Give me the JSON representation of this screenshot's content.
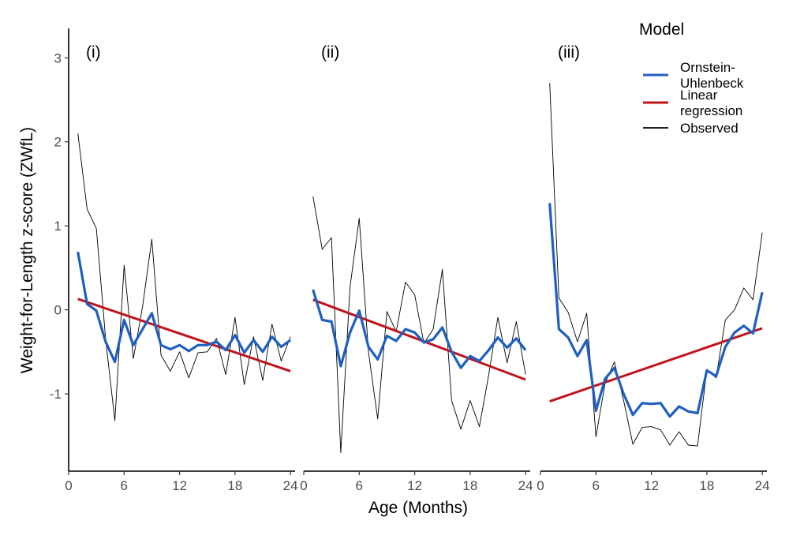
{
  "chart_data": {
    "type": "line",
    "xlabel": "Age (Months)",
    "ylabel": "Weight-for-Length z-score (ZWfL)",
    "xlim": [
      0,
      24.5
    ],
    "ylim": [
      -1.92,
      3.35
    ],
    "x_ticks": [
      0,
      6,
      12,
      18,
      24
    ],
    "y_ticks": [
      -1,
      0,
      1,
      2,
      3
    ],
    "grid": false,
    "legend": {
      "title": "Model",
      "placement": "top-right",
      "entries": [
        {
          "lines": [
            "Ornstein-",
            "Uhlenbeck"
          ],
          "color": "#1f5fbf",
          "series": "ou"
        },
        {
          "lines": [
            "Linear",
            "regression"
          ],
          "color": "#c0141c",
          "series": "lr"
        },
        {
          "lines": [
            "Observed"
          ],
          "color": "#000000",
          "series": "obs"
        }
      ]
    },
    "panels": [
      {
        "label": "(i)",
        "observed": {
          "x": [
            1,
            2,
            3,
            4,
            5,
            6,
            7,
            8,
            9,
            10,
            11,
            12,
            13,
            14,
            15,
            16,
            17,
            18,
            19,
            20,
            21,
            22,
            23,
            24
          ],
          "y": [
            2.1,
            1.2,
            0.97,
            -0.35,
            -1.32,
            0.53,
            -0.58,
            0.04,
            0.84,
            -0.54,
            -0.73,
            -0.5,
            -0.81,
            -0.51,
            -0.5,
            -0.34,
            -0.77,
            -0.09,
            -0.89,
            -0.32,
            -0.84,
            -0.17,
            -0.61,
            -0.32
          ]
        },
        "ornstein_uhlenbeck": {
          "x": [
            1,
            2,
            3,
            4,
            5,
            6,
            7,
            8,
            9,
            10,
            11,
            12,
            13,
            14,
            15,
            16,
            17,
            18,
            19,
            20,
            21,
            22,
            23,
            24
          ],
          "y": [
            0.69,
            0.07,
            -0.01,
            -0.38,
            -0.62,
            -0.12,
            -0.42,
            -0.23,
            -0.04,
            -0.42,
            -0.47,
            -0.42,
            -0.49,
            -0.42,
            -0.42,
            -0.38,
            -0.48,
            -0.3,
            -0.51,
            -0.36,
            -0.5,
            -0.32,
            -0.44,
            -0.36
          ]
        },
        "linear_regression": {
          "x": [
            1,
            24
          ],
          "y": [
            0.13,
            -0.73
          ]
        }
      },
      {
        "label": "(ii)",
        "observed": {
          "x": [
            1,
            2,
            3,
            4,
            5,
            6,
            7,
            8,
            9,
            10,
            11,
            12,
            13,
            14,
            15,
            16,
            17,
            18,
            19,
            20,
            21,
            22,
            23,
            24
          ],
          "y": [
            1.35,
            0.72,
            0.86,
            -1.7,
            0.27,
            1.09,
            -0.5,
            -1.3,
            -0.02,
            -0.26,
            0.33,
            0.18,
            -0.4,
            -0.23,
            0.48,
            -1.08,
            -1.42,
            -1.08,
            -1.39,
            -0.78,
            -0.09,
            -0.63,
            -0.14,
            -0.77
          ]
        },
        "ornstein_uhlenbeck": {
          "x": [
            1,
            2,
            3,
            4,
            5,
            6,
            7,
            8,
            9,
            10,
            11,
            12,
            13,
            14,
            15,
            16,
            17,
            18,
            19,
            20,
            21,
            22,
            23,
            24
          ],
          "y": [
            0.24,
            -0.12,
            -0.14,
            -0.67,
            -0.27,
            -0.01,
            -0.44,
            -0.59,
            -0.31,
            -0.37,
            -0.23,
            -0.27,
            -0.39,
            -0.35,
            -0.21,
            -0.5,
            -0.69,
            -0.55,
            -0.61,
            -0.48,
            -0.33,
            -0.45,
            -0.34,
            -0.48
          ]
        },
        "linear_regression": {
          "x": [
            1,
            24
          ],
          "y": [
            0.12,
            -0.83
          ]
        }
      },
      {
        "label": "(iii)",
        "observed": {
          "x": [
            1,
            2,
            3,
            4,
            5,
            6,
            7,
            8,
            9,
            10,
            11,
            12,
            13,
            14,
            15,
            16,
            17,
            18,
            19,
            20,
            21,
            22,
            23,
            24
          ],
          "y": [
            2.7,
            0.14,
            -0.03,
            -0.38,
            -0.04,
            -1.51,
            -0.87,
            -0.62,
            -1.08,
            -1.6,
            -1.4,
            -1.39,
            -1.43,
            -1.61,
            -1.45,
            -1.61,
            -1.62,
            -0.71,
            -0.81,
            -0.12,
            0.0,
            0.26,
            0.12,
            0.92
          ]
        },
        "ornstein_uhlenbeck": {
          "x": [
            1,
            2,
            3,
            4,
            5,
            6,
            7,
            8,
            9,
            10,
            11,
            12,
            13,
            14,
            15,
            16,
            17,
            18,
            19,
            20,
            21,
            22,
            23,
            24
          ],
          "y": [
            1.27,
            -0.23,
            -0.33,
            -0.55,
            -0.36,
            -1.2,
            -0.82,
            -0.69,
            -1.0,
            -1.25,
            -1.11,
            -1.12,
            -1.11,
            -1.27,
            -1.15,
            -1.21,
            -1.23,
            -0.72,
            -0.79,
            -0.44,
            -0.27,
            -0.19,
            -0.28,
            0.21
          ]
        },
        "linear_regression": {
          "x": [
            1,
            24
          ],
          "y": [
            -1.09,
            -0.22
          ]
        }
      }
    ]
  }
}
